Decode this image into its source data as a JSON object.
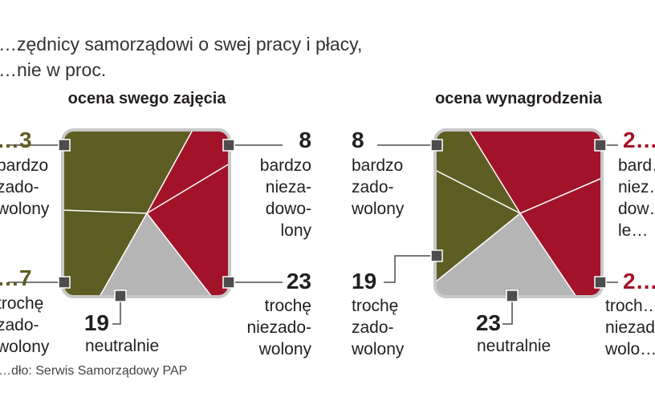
{
  "title": "…zędnicy samorządowi o swej pracy i płacy,",
  "subtitle": "…nie w proc.",
  "source": "…dło: Serwis Samorządowy PAP",
  "colors": {
    "olive": "#5e5e24",
    "crimson": "#a2132a",
    "gray": "#b5b5b5",
    "frame": "#c8c8c8",
    "marker": "#4d4d4d"
  },
  "panels": [
    {
      "title": "ocena  swego zajęcia",
      "values": [
        "…3",
        "8",
        "…7",
        "19",
        "23"
      ],
      "labels": [
        "bardzo\nzado-\nwolony",
        "bardzo\nnieza-\ndowo-\nlony",
        "trochę\nzado-\nwolony",
        "neutralnie",
        "trochę\nniezado-\nwolony"
      ]
    },
    {
      "title": "ocena wynagrodzenia",
      "values": [
        "8",
        "2…",
        "19",
        "23",
        "2…"
      ],
      "labels": [
        "bardzo\nzado-\nwolony",
        "bard…\nniez…\ndow…\nle…",
        "trochę\nzado-\nwolony",
        "neutralnie",
        "troch…\nniezad…\nwolo…"
      ]
    }
  ],
  "chart_data": [
    {
      "type": "pie",
      "title": "ocena  swego zajęcia",
      "categories": [
        "bardzo zadowolony",
        "trochę zadowolony",
        "neutralnie",
        "trochę niezadowolony",
        "bardzo niezadowolony"
      ],
      "values": [
        null,
        null,
        19,
        23,
        8
      ],
      "note_values_cropped": "first two values cut off at left edge"
    },
    {
      "type": "pie",
      "title": "ocena wynagrodzenia",
      "categories": [
        "bardzo zadowolony",
        "trochę zadowolony",
        "neutralnie",
        "trochę niezadowolony",
        "bardzo niezadowolony"
      ],
      "values": [
        8,
        19,
        23,
        null,
        null
      ],
      "note_values_cropped": "last two values cut off at right edge"
    }
  ]
}
